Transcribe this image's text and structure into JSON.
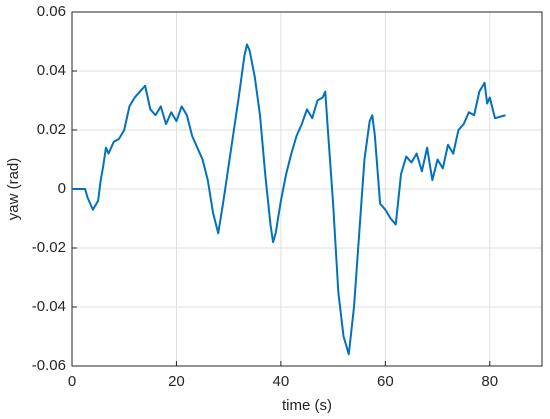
{
  "chart_data": {
    "type": "line",
    "x_label": "time (s)",
    "y_label": "yaw (rad)",
    "x": [
      0,
      1,
      2,
      2.5,
      3,
      4,
      5,
      5.5,
      6,
      6.5,
      7,
      8,
      9,
      10,
      11,
      12,
      13,
      14,
      15,
      16,
      17,
      18,
      19,
      20,
      21,
      22,
      23,
      24,
      25,
      26,
      27,
      28,
      29,
      30,
      31,
      32,
      33,
      33.5,
      34,
      35,
      36,
      37,
      38,
      38.5,
      39,
      40,
      41,
      42,
      43,
      44,
      45,
      46,
      47,
      48,
      48.5,
      49,
      50,
      51,
      52,
      53,
      54,
      55,
      56,
      57,
      57.5,
      58,
      59,
      60,
      61,
      62,
      63,
      64,
      65,
      66,
      67,
      68,
      69,
      70,
      71,
      72,
      73,
      74,
      75,
      76,
      77,
      78,
      79,
      79.5,
      80,
      81,
      83
    ],
    "series": [
      {
        "name": "yaw",
        "color": "#0072bd",
        "values": [
          0,
          0,
          0,
          0,
          -0.003,
          -0.007,
          -0.004,
          0.003,
          0.008,
          0.014,
          0.012,
          0.016,
          0.017,
          0.02,
          0.028,
          0.031,
          0.033,
          0.035,
          0.027,
          0.025,
          0.028,
          0.022,
          0.026,
          0.023,
          0.028,
          0.025,
          0.018,
          0.014,
          0.01,
          0.003,
          -0.008,
          -0.015,
          -0.004,
          0.008,
          0.02,
          0.032,
          0.045,
          0.049,
          0.047,
          0.038,
          0.025,
          0.005,
          -0.012,
          -0.018,
          -0.015,
          -0.004,
          0.005,
          0.012,
          0.018,
          0.022,
          0.027,
          0.024,
          0.03,
          0.031,
          0.033,
          0.02,
          -0.005,
          -0.035,
          -0.05,
          -0.056,
          -0.04,
          -0.015,
          0.01,
          0.023,
          0.025,
          0.018,
          -0.005,
          -0.007,
          -0.01,
          -0.012,
          0.005,
          0.011,
          0.009,
          0.012,
          0.006,
          0.014,
          0.003,
          0.01,
          0.007,
          0.015,
          0.012,
          0.02,
          0.022,
          0.026,
          0.025,
          0.033,
          0.036,
          0.029,
          0.031,
          0.024,
          0.025
        ]
      }
    ],
    "xlim": [
      0,
      90
    ],
    "xticks": [
      0,
      20,
      40,
      60,
      80
    ],
    "ylim": [
      -0.06,
      0.06
    ],
    "yticks": [
      -0.06,
      -0.04,
      -0.02,
      0,
      0.02,
      0.04,
      0.06
    ],
    "grid": true
  }
}
